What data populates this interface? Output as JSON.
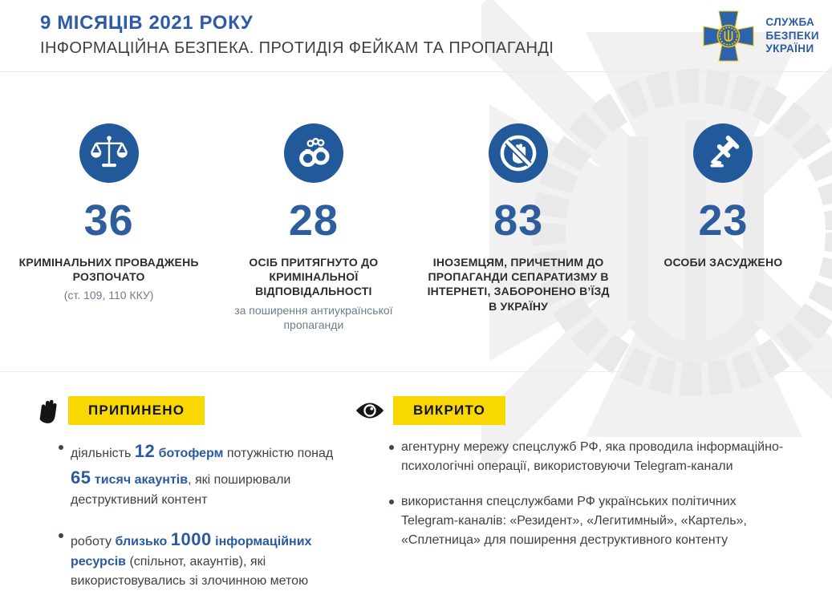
{
  "header": {
    "title": "9 МІСЯЦІВ 2021 РОКУ",
    "subtitle": "ІНФОРМАЦІЙНА БЕЗПЕКА. ПРОТИДІЯ ФЕЙКАМ ТА ПРОПАГАНДІ",
    "logo": {
      "icon": "sbu-emblem-icon",
      "lines": [
        "СЛУЖБА",
        "БЕЗПЕКИ",
        "УКРАЇНИ"
      ]
    }
  },
  "stats": [
    {
      "icon": "scales-icon",
      "value": "36",
      "label": "КРИМІНАЛЬНИХ ПРОВАДЖЕНЬ РОЗПОЧАТО",
      "note": "(ст. 109, 110 ККУ)"
    },
    {
      "icon": "handcuffs-icon",
      "value": "28",
      "label": "ОСІБ ПРИТЯГНУТО ДО КРИМІНАЛЬНОЇ ВІДПОВІДАЛЬНОСТІ",
      "note": "за поширення антиукраїнської пропаганди"
    },
    {
      "icon": "no-entry-hand-icon",
      "value": "83",
      "label": "ІНОЗЕМЦЯМ, ПРИЧЕТНИМ ДО ПРОПАГАНДИ СЕПАРАТИЗМУ В ІНТЕРНЕТІ, ЗАБОРОНЕНО В’ЇЗД В УКРАЇНУ",
      "note": ""
    },
    {
      "icon": "gavel-icon",
      "value": "23",
      "label": "ОСОБИ ЗАСУДЖЕНО",
      "note": ""
    }
  ],
  "sections": [
    {
      "icon": "stop-hand-icon",
      "badge": "ПРИПИНЕНО",
      "bullets": [
        [
          {
            "t": "діяльність ",
            "s": "n"
          },
          {
            "t": "12",
            "s": "num"
          },
          {
            "t": " ботоферм",
            "s": "acc"
          },
          {
            "t": " потужністю понад ",
            "s": "n"
          },
          {
            "t": "65",
            "s": "num"
          },
          {
            "t": " тисяч акаунтів",
            "s": "acc"
          },
          {
            "t": ", які поширювали деструктивний контент",
            "s": "n"
          }
        ],
        [
          {
            "t": "роботу ",
            "s": "n"
          },
          {
            "t": "близько ",
            "s": "acc"
          },
          {
            "t": "1000",
            "s": "num"
          },
          {
            "t": " інформаційних ресурсів",
            "s": "acc"
          },
          {
            "t": " (спільнот, акаунтів), які використовувались зі злочинною метою",
            "s": "n"
          }
        ]
      ]
    },
    {
      "icon": "eye-icon",
      "badge": "ВИКРИТО",
      "bullets": [
        [
          {
            "t": "агентурну мережу спецслужб РФ, яка проводила інформаційно-психологічні операції, використовуючи Telegram-канали",
            "s": "n"
          }
        ],
        [
          {
            "t": "використання спецслужбами РФ українських політичних Telegram-каналів: «Резидент», «Легитимный», «Картель», «Сплетница» для поширення деструктивного контенту",
            "s": "n"
          }
        ]
      ]
    }
  ],
  "colors": {
    "accent_blue": "#2a5a9f",
    "icon_circle_blue": "#21599b",
    "title_blue": "#2d5ba6",
    "badge_yellow": "#f8d800",
    "text_dark": "#3d4248",
    "note_gray": "#6e7c8c",
    "divider_gray": "#ececec",
    "emblem_gold": "#f2c500"
  }
}
